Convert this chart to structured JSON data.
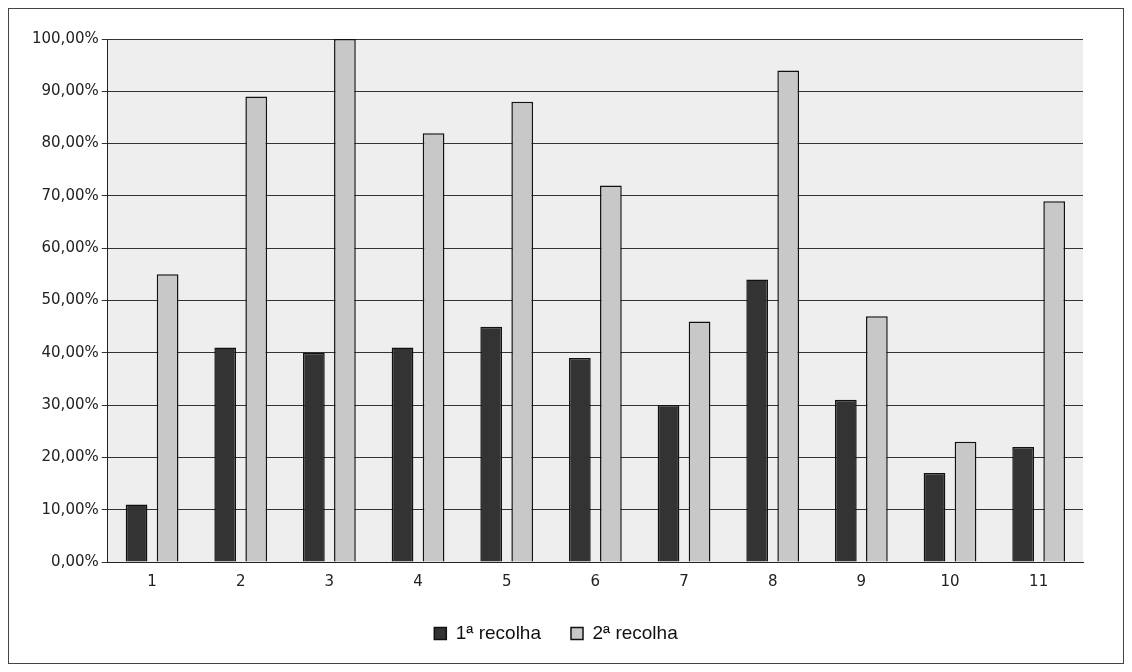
{
  "chart_data": {
    "type": "bar",
    "categories": [
      "1",
      "2",
      "3",
      "4",
      "5",
      "6",
      "7",
      "8",
      "9",
      "10",
      "11"
    ],
    "series": [
      {
        "name": "1ª recolha",
        "color": "#333333",
        "values": [
          11,
          41,
          40,
          41,
          45,
          39,
          30,
          54,
          31,
          17,
          22
        ]
      },
      {
        "name": "2ª recolha",
        "color": "#c8c8c8",
        "values": [
          55,
          89,
          100,
          82,
          88,
          72,
          46,
          94,
          47,
          23,
          69
        ]
      }
    ],
    "ylim": [
      0,
      100
    ],
    "yticks": [
      {
        "value": 0,
        "label": "0,00%"
      },
      {
        "value": 10,
        "label": "10,00%"
      },
      {
        "value": 20,
        "label": "20,00%"
      },
      {
        "value": 30,
        "label": "30,00%"
      },
      {
        "value": 40,
        "label": "40,00%"
      },
      {
        "value": 50,
        "label": "50,00%"
      },
      {
        "value": 60,
        "label": "60,00%"
      },
      {
        "value": 70,
        "label": "70,00%"
      },
      {
        "value": 80,
        "label": "80,00%"
      },
      {
        "value": 90,
        "label": "90,00%"
      },
      {
        "value": 100,
        "label": "100,00%"
      }
    ],
    "grid": "y",
    "legend": "bottom"
  }
}
